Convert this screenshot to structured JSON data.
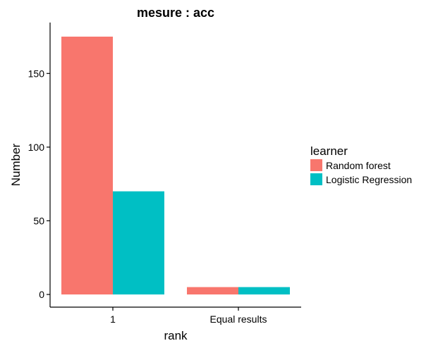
{
  "chart_data": {
    "type": "bar",
    "title": "mesure : acc",
    "xlabel": "rank",
    "ylabel": "Number",
    "categories": [
      "1",
      "Equal results"
    ],
    "series": [
      {
        "name": "Random forest",
        "values": [
          175,
          5
        ],
        "color": "#F8766D"
      },
      {
        "name": "Logistic Regression",
        "values": [
          70,
          5
        ],
        "color": "#00BFC4"
      }
    ],
    "ylim": [
      0,
      180
    ],
    "yticks": [
      0,
      50,
      100,
      150
    ],
    "legend": {
      "title": "learner",
      "position": "right"
    },
    "grid": false
  }
}
